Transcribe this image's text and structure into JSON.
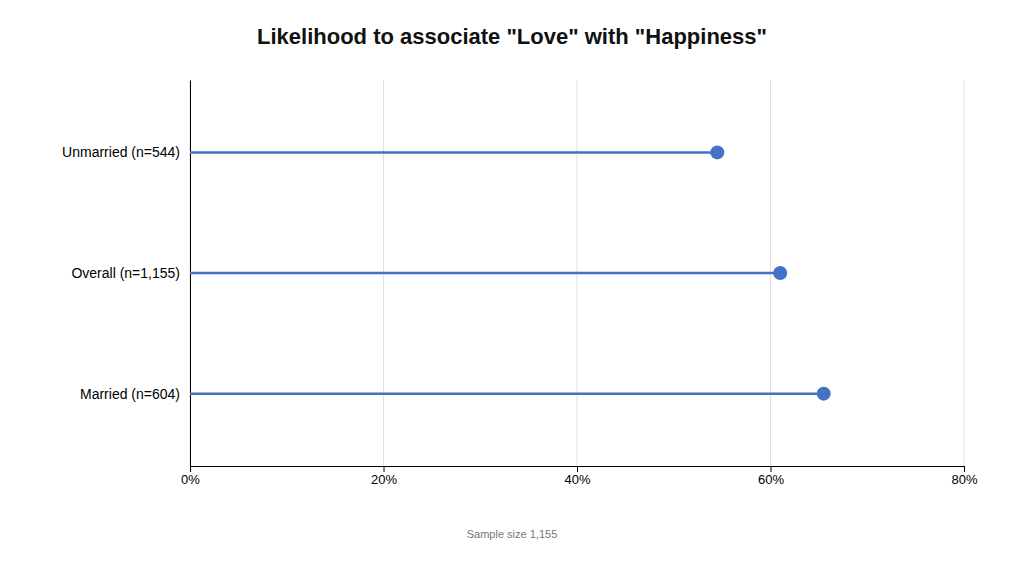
{
  "chart_data": {
    "type": "lollipop",
    "title": "Likelihood to associate \"Love\" with \"Happiness\"",
    "categories": [
      "Unmarried (n=544)",
      "Overall (n=1,155)",
      "Married (n=604)"
    ],
    "values": [
      54.5,
      61.0,
      65.5
    ],
    "color": "#4472c4",
    "orientation": "horizontal",
    "xlim": [
      0,
      80
    ],
    "xticks": [
      {
        "value": 0,
        "label": "0%"
      },
      {
        "value": 20,
        "label": "20%"
      },
      {
        "value": 40,
        "label": "40%"
      },
      {
        "value": 60,
        "label": "60%"
      },
      {
        "value": 80,
        "label": "80%"
      }
    ],
    "grid": true,
    "annotations": [
      "Sample size 1,155"
    ]
  }
}
